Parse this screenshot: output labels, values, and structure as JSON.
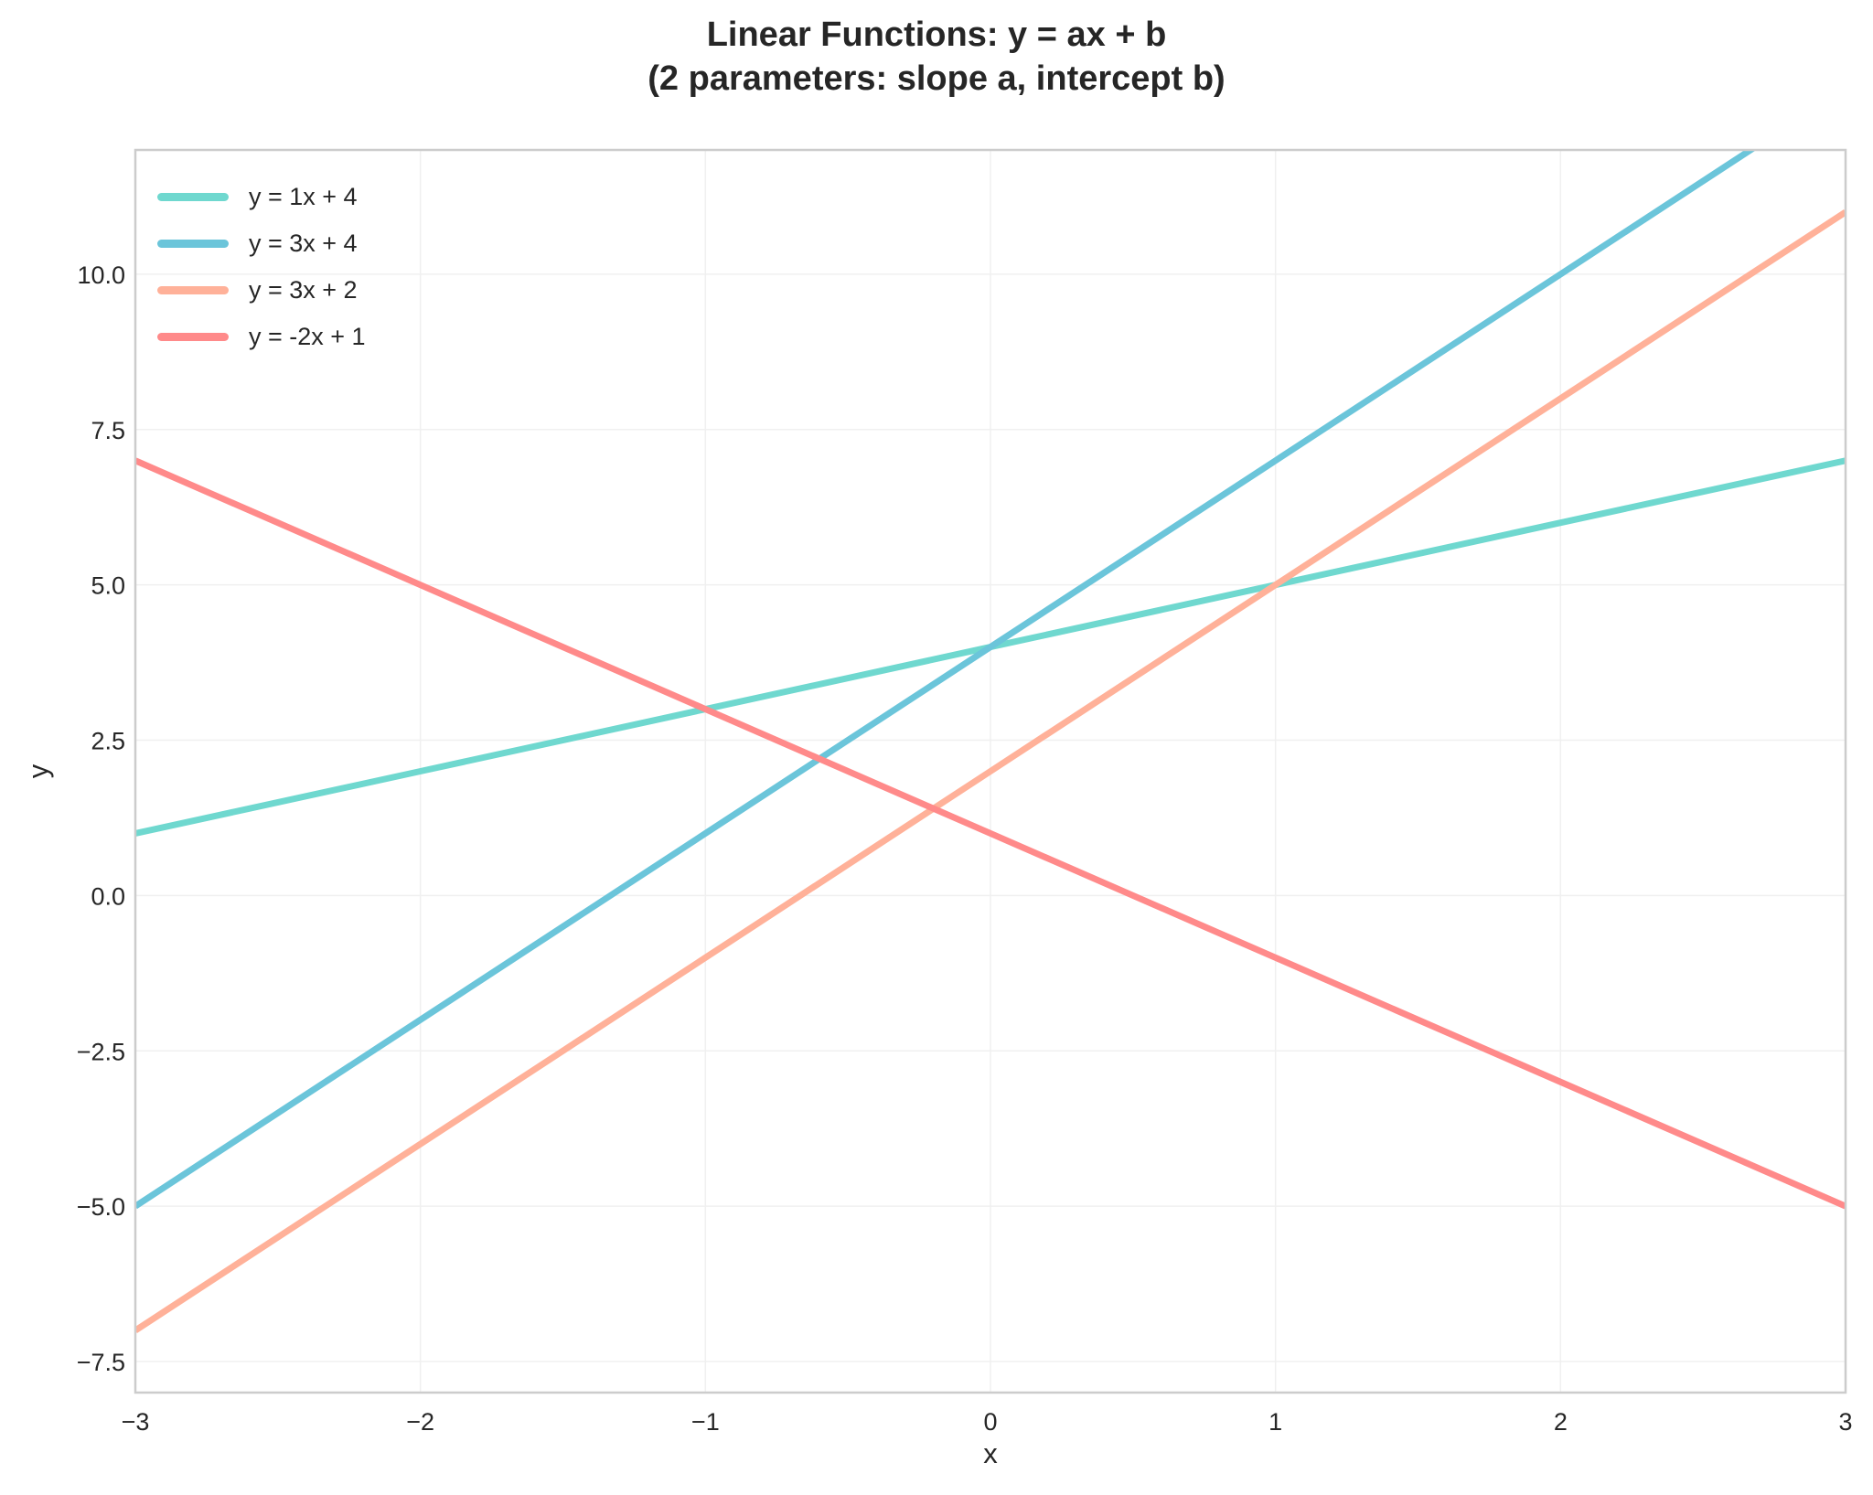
{
  "title_lines": [
    "Linear Functions: y = ax + b",
    "(2 parameters: slope a, intercept b)"
  ],
  "chart_data": {
    "type": "line",
    "title": "Linear Functions: y = ax + b\n(2 parameters: slope a, intercept b)",
    "xlabel": "x",
    "ylabel": "y",
    "xlim": [
      -3,
      3
    ],
    "ylim": [
      -8,
      12
    ],
    "xticks": [
      -3,
      -2,
      -1,
      0,
      1,
      2,
      3
    ],
    "xtick_labels": [
      "−3",
      "−2",
      "−1",
      "0",
      "1",
      "2",
      "3"
    ],
    "yticks": [
      -7.5,
      -5.0,
      -2.5,
      0.0,
      2.5,
      5.0,
      7.5,
      10.0
    ],
    "ytick_labels": [
      "−7.5",
      "−5.0",
      "−2.5",
      "0.0",
      "2.5",
      "5.0",
      "7.5",
      "10.0"
    ],
    "grid": true,
    "legend_position": "upper left",
    "x": [
      -3,
      -2,
      -1,
      0,
      1,
      2,
      3
    ],
    "series": [
      {
        "name": "y = 1x + 4",
        "a": 1,
        "b": 4,
        "color": "#6FD8CF",
        "values": [
          1,
          2,
          3,
          4,
          5,
          6,
          7
        ]
      },
      {
        "name": "y = 3x + 4",
        "a": 3,
        "b": 4,
        "color": "#6BC5DA",
        "values": [
          -5,
          -2,
          1,
          4,
          7,
          10,
          13
        ]
      },
      {
        "name": "y = 3x + 2",
        "a": 3,
        "b": 2,
        "color": "#FFB199",
        "values": [
          -7,
          -4,
          -1,
          2,
          5,
          8,
          11
        ]
      },
      {
        "name": "y = -2x + 1",
        "a": -2,
        "b": 1,
        "color": "#FF8A8A",
        "values": [
          7,
          5,
          3,
          1,
          -1,
          -3,
          -5
        ]
      }
    ]
  }
}
